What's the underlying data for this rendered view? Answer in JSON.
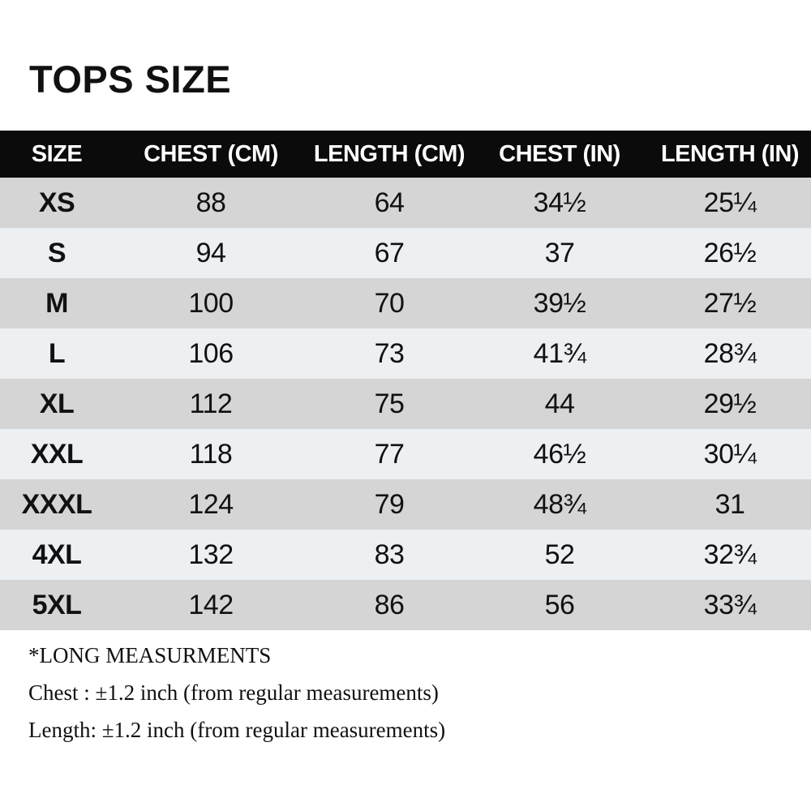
{
  "page": {
    "title": "TOPS SIZE"
  },
  "colors": {
    "page_bg": "#ffffff",
    "header_bg": "#0b0b0b",
    "header_text": "#ffffff",
    "row_dark": "#d5d5d6",
    "row_light": "#edf0f2",
    "text": "#111111"
  },
  "table": {
    "columns": [
      "SIZE",
      "CHEST (CM)",
      "LENGTH (CM)",
      "CHEST (IN)",
      "LENGTH (IN)"
    ],
    "rows": [
      {
        "size": "XS",
        "chest_cm": "88",
        "length_cm": "64",
        "chest_in": "34½",
        "length_in": "25¼"
      },
      {
        "size": "S",
        "chest_cm": "94",
        "length_cm": "67",
        "chest_in": "37",
        "length_in": "26½"
      },
      {
        "size": "M",
        "chest_cm": "100",
        "length_cm": "70",
        "chest_in": "39½",
        "length_in": "27½"
      },
      {
        "size": "L",
        "chest_cm": "106",
        "length_cm": "73",
        "chest_in": "41¾",
        "length_in": "28¾"
      },
      {
        "size": "XL",
        "chest_cm": "112",
        "length_cm": "75",
        "chest_in": "44",
        "length_in": "29½"
      },
      {
        "size": "XXL",
        "chest_cm": "118",
        "length_cm": "77",
        "chest_in": "46½",
        "length_in": "30¼"
      },
      {
        "size": "XXXL",
        "chest_cm": "124",
        "length_cm": "79",
        "chest_in": "48¾",
        "length_in": "31"
      },
      {
        "size": "4XL",
        "chest_cm": "132",
        "length_cm": "83",
        "chest_in": "52",
        "length_in": "32¾"
      },
      {
        "size": "5XL",
        "chest_cm": "142",
        "length_cm": "86",
        "chest_in": "56",
        "length_in": "33¾"
      }
    ]
  },
  "notes": {
    "line1": "*LONG MEASURMENTS",
    "line2": "Chest : ±1.2 inch (from regular measurements)",
    "line3": "Length: ±1.2 inch (from regular measurements)"
  }
}
